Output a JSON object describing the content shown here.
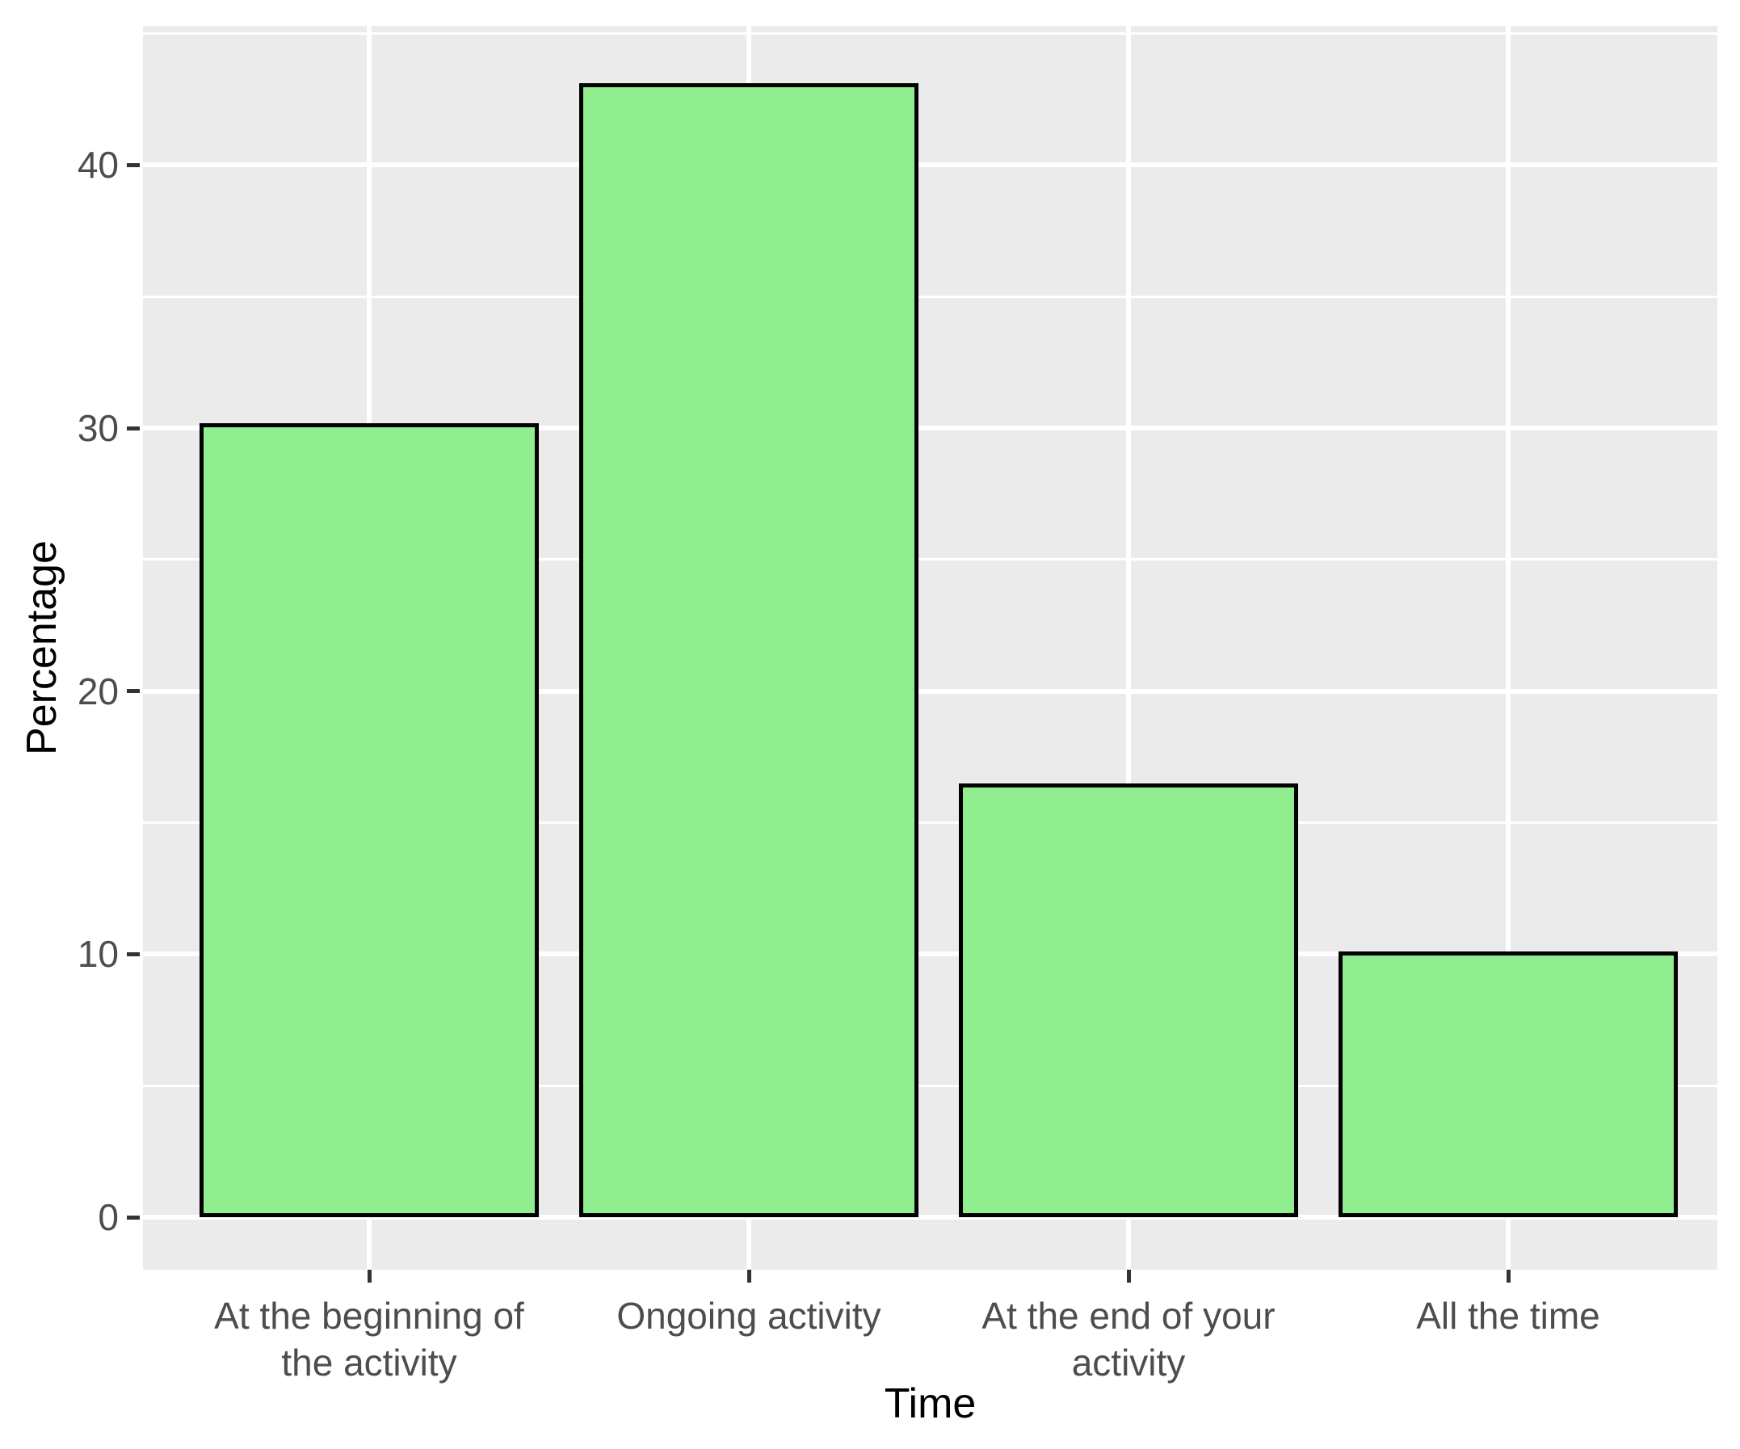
{
  "chart_data": {
    "type": "bar",
    "title": "",
    "categories": [
      "At the beginning of the activity",
      "Ongoing activity",
      "At the end of your activity",
      "All the time"
    ],
    "category_lines": [
      [
        "At the beginning of",
        "the activity"
      ],
      [
        "Ongoing activity"
      ],
      [
        "At the end of your",
        "activity"
      ],
      [
        "All the time"
      ]
    ],
    "values": [
      30.2,
      43.1,
      16.5,
      10.1
    ],
    "xlabel": "Time",
    "ylabel": "Percentage",
    "ylim": [
      -2,
      45.3
    ],
    "yticks": [
      0,
      10,
      20,
      30,
      40
    ],
    "yticks_minor": [
      5,
      15,
      25,
      35,
      45
    ],
    "grid": "on",
    "legend": "none",
    "styles": {
      "bar_fill": "#90EE90",
      "bar_stroke": "#000000",
      "panel_background": "#EBEBEB",
      "gridline_color": "#FFFFFF",
      "tick_label_color": "#4D4D4D",
      "axis_title_color": "#000000",
      "tick_mark_color": "#333333",
      "page_background": "#FFFFFF"
    }
  }
}
